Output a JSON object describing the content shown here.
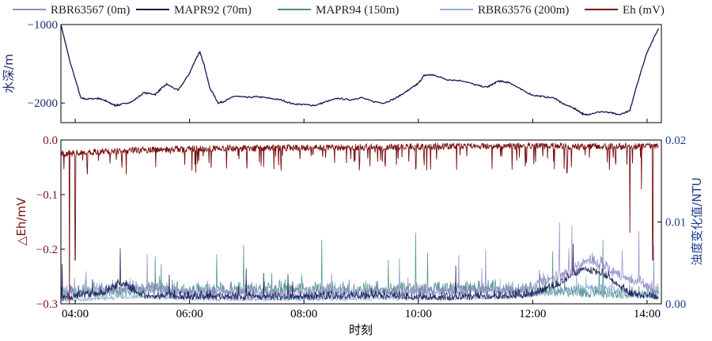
{
  "chart_data": [
    {
      "type": "line",
      "ylabel": "水深/m",
      "yticks": [
        -1000,
        -2000
      ],
      "ylim": [
        -2250,
        -1000
      ],
      "xlim": [
        3.75,
        14.25
      ],
      "series": [
        {
          "name": "MAPR92 (70m)",
          "x": [
            3.75,
            3.9,
            4.1,
            4.2,
            4.4,
            4.5,
            4.6,
            4.7,
            4.8,
            5.0,
            5.2,
            5.4,
            5.5,
            5.6,
            5.8,
            6.0,
            6.1,
            6.18,
            6.25,
            6.35,
            6.5,
            6.6,
            6.8,
            7.0,
            7.2,
            7.4,
            7.6,
            7.8,
            8.0,
            8.2,
            8.4,
            8.6,
            8.8,
            9.0,
            9.2,
            9.4,
            9.6,
            9.8,
            9.9,
            10.0,
            10.1,
            10.2,
            10.3,
            10.5,
            10.8,
            11.0,
            11.2,
            11.3,
            11.4,
            11.5,
            11.6,
            11.8,
            12.0,
            12.2,
            12.4,
            12.5,
            12.7,
            12.8,
            12.9,
            13.0,
            13.2,
            13.4,
            13.5,
            13.7,
            13.8,
            14.0,
            14.2
          ],
          "values": [
            -1000,
            -1450,
            -1940,
            -1950,
            -1940,
            -1960,
            -2000,
            -2030,
            -2020,
            -1980,
            -1870,
            -1890,
            -1820,
            -1760,
            -1840,
            -1620,
            -1450,
            -1350,
            -1500,
            -1800,
            -2000,
            -1980,
            -1910,
            -1930,
            -1920,
            -1940,
            -1960,
            -2010,
            -2020,
            -2030,
            -1980,
            -1940,
            -1960,
            -1930,
            -1980,
            -2000,
            -1940,
            -1850,
            -1800,
            -1750,
            -1650,
            -1640,
            -1650,
            -1700,
            -1720,
            -1770,
            -1800,
            -1760,
            -1720,
            -1730,
            -1740,
            -1830,
            -1900,
            -1920,
            -1940,
            -2000,
            -2060,
            -2100,
            -2150,
            -2140,
            -2110,
            -2130,
            -2150,
            -2100,
            -1820,
            -1350,
            -1050
          ]
        }
      ]
    },
    {
      "type": "line",
      "xlabel": "时刻",
      "ylabel_left": "△Eh/mV",
      "ylabel_right": "浊度变化值/NTU",
      "yticks_left": [
        "0.0",
        "-0.1",
        "-0.2",
        "-0.3"
      ],
      "ylim_left": [
        -0.3,
        0.0
      ],
      "yticks_right": [
        "0.02",
        "0.01",
        "0.00"
      ],
      "ylim_right": [
        0.0,
        0.02
      ],
      "xticks": [
        "04:00",
        "06:00",
        "08:00",
        "10:00",
        "12:00",
        "14:00"
      ],
      "xtick_values": [
        4,
        6,
        8,
        10,
        12,
        14
      ],
      "xlim": [
        3.75,
        14.25
      ],
      "legend_position": "top",
      "series": [
        {
          "name": "RBR63567 (0m)",
          "color": "#8e8cc8",
          "axis": "right",
          "baseline": [
            [
              3.75,
              0.0008
            ],
            [
              4.5,
              0.0012
            ],
            [
              5.0,
              0.0014
            ],
            [
              6.0,
              0.0008
            ],
            [
              8.0,
              0.0007
            ],
            [
              10.0,
              0.0009
            ],
            [
              11.8,
              0.0011
            ],
            [
              12.5,
              0.0028
            ],
            [
              13.0,
              0.0048
            ],
            [
              13.5,
              0.003
            ],
            [
              14.2,
              0.001
            ]
          ],
          "noise": 0.0018
        },
        {
          "name": "MAPR92 (70m)",
          "color": "#141450",
          "axis": "right",
          "baseline": [
            [
              3.75,
              0.0003
            ],
            [
              4.5,
              0.001
            ],
            [
              4.8,
              0.0022
            ],
            [
              5.2,
              0.0006
            ],
            [
              7.0,
              0.0004
            ],
            [
              9.0,
              0.0006
            ],
            [
              10.5,
              0.0004
            ],
            [
              12.0,
              0.0007
            ],
            [
              12.5,
              0.0022
            ],
            [
              12.9,
              0.004
            ],
            [
              13.3,
              0.003
            ],
            [
              13.7,
              0.0008
            ],
            [
              14.2,
              0.0004
            ]
          ],
          "noise": 0.0012
        },
        {
          "name": "MAPR94 (150m)",
          "color": "#4a8c8a",
          "axis": "right",
          "baseline": [
            [
              3.75,
              0.0006
            ],
            [
              4.5,
              0.0008
            ],
            [
              5.5,
              0.001
            ],
            [
              7.0,
              0.0012
            ],
            [
              9.0,
              0.001
            ],
            [
              11.0,
              0.0012
            ],
            [
              12.5,
              0.0008
            ],
            [
              13.5,
              0.0006
            ],
            [
              14.2,
              0.0006
            ]
          ],
          "noise": 0.002
        },
        {
          "name": "RBR63576 (200m)",
          "color": "#8fb0dc",
          "axis": "right",
          "baseline": [
            [
              3.75,
              0.0002
            ],
            [
              4.5,
              0.0004
            ],
            [
              5.0,
              0.0006
            ],
            [
              6.5,
              0.0003
            ],
            [
              9.5,
              0.0004
            ],
            [
              11.5,
              0.0005
            ],
            [
              12.5,
              0.0012
            ],
            [
              13.2,
              0.0018
            ],
            [
              14.2,
              0.0004
            ]
          ],
          "noise": 0.0008
        },
        {
          "name": "Eh (mV)",
          "color": "#7a1010",
          "axis": "left",
          "baseline": [
            [
              3.75,
              -0.02
            ],
            [
              4.5,
              -0.015
            ],
            [
              6.0,
              -0.01
            ],
            [
              8.0,
              -0.008
            ],
            [
              10.0,
              -0.006
            ],
            [
              12.0,
              -0.005
            ],
            [
              14.2,
              -0.006
            ]
          ],
          "noise": 0.02,
          "dips": [
            [
              3.9,
              -0.3
            ],
            [
              4.0,
              -0.22
            ],
            [
              12.6,
              -0.06
            ],
            [
              13.7,
              -0.17
            ],
            [
              13.9,
              -0.09
            ],
            [
              14.1,
              -0.22
            ]
          ]
        }
      ]
    }
  ]
}
